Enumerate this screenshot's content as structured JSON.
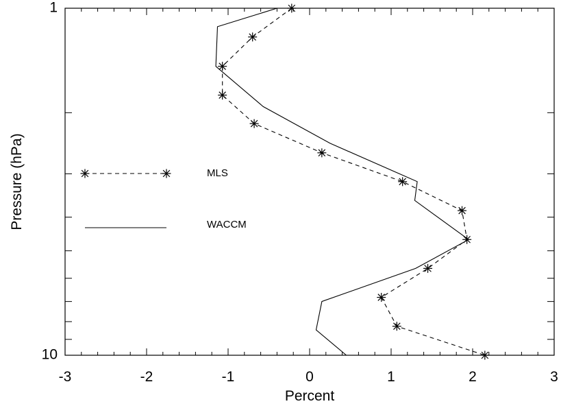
{
  "chart_data": {
    "type": "line",
    "xlabel": "Percent",
    "ylabel": "Pressure (hPa)",
    "xlim": [
      -3,
      3
    ],
    "ylim": [
      10,
      1
    ],
    "yscale": "log",
    "x_ticks": [
      "-3",
      "-2",
      "-1",
      "0",
      "1",
      "2",
      "3"
    ],
    "y_ticks": [
      "1",
      "10"
    ],
    "grid": false,
    "legend_position": "left-center",
    "series": [
      {
        "name": "MLS",
        "style": "dashed-star",
        "color": "#000000",
        "points": [
          {
            "x": -0.22,
            "y": 1.0
          },
          {
            "x": -0.7,
            "y": 1.21
          },
          {
            "x": -1.07,
            "y": 1.47
          },
          {
            "x": -1.07,
            "y": 1.78
          },
          {
            "x": -0.68,
            "y": 2.15
          },
          {
            "x": 0.15,
            "y": 2.61
          },
          {
            "x": 1.14,
            "y": 3.16
          },
          {
            "x": 1.87,
            "y": 3.83
          },
          {
            "x": 1.93,
            "y": 4.64
          },
          {
            "x": 1.45,
            "y": 5.62
          },
          {
            "x": 0.88,
            "y": 6.81
          },
          {
            "x": 1.07,
            "y": 8.25
          },
          {
            "x": 2.15,
            "y": 10.0
          }
        ]
      },
      {
        "name": "WACCM",
        "style": "solid",
        "color": "#000000",
        "points": [
          {
            "x": -0.4,
            "y": 1.0
          },
          {
            "x": -1.13,
            "y": 1.13
          },
          {
            "x": -1.15,
            "y": 1.47
          },
          {
            "x": -0.57,
            "y": 1.92
          },
          {
            "x": 0.25,
            "y": 2.45
          },
          {
            "x": 1.32,
            "y": 3.16
          },
          {
            "x": 1.29,
            "y": 3.58
          },
          {
            "x": 1.95,
            "y": 4.64
          },
          {
            "x": 1.3,
            "y": 5.62
          },
          {
            "x": 0.15,
            "y": 7.0
          },
          {
            "x": 0.08,
            "y": 8.45
          },
          {
            "x": 0.45,
            "y": 10.0
          }
        ]
      }
    ]
  }
}
